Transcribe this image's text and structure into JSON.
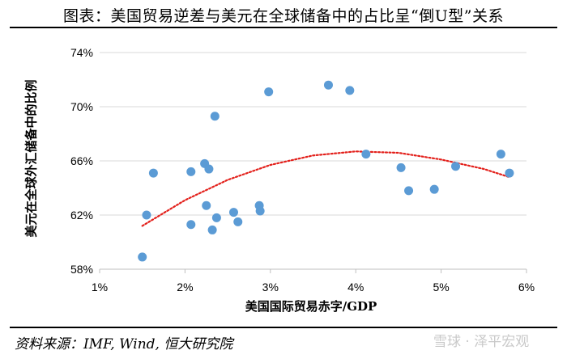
{
  "title": "图表：美国贸易逆差与美元在全球储备中的占比呈“倒U型”关系",
  "source": "资料来源：IMF, Wind, 恒大研究院",
  "watermark": "雪球 · 泽平宏观",
  "chart_data": {
    "type": "scatter",
    "title": "图表：美国贸易逆差与美元在全球储备中的占比呈“倒U型”关系",
    "xlabel": "美国国际贸易赤字/GDP",
    "ylabel": "美元在全球外汇储备中的比例",
    "xlim": [
      1,
      6
    ],
    "ylim": [
      58,
      74
    ],
    "x_ticks": [
      1,
      2,
      3,
      4,
      5,
      6
    ],
    "x_tick_labels": [
      "1%",
      "2%",
      "3%",
      "4%",
      "5%",
      "6%"
    ],
    "y_ticks": [
      58,
      62,
      66,
      70,
      74
    ],
    "y_tick_labels": [
      "58%",
      "62%",
      "66%",
      "70%",
      "74%"
    ],
    "point_color": "#5B9BD5",
    "trend_color": "#E3211C",
    "series": [
      {
        "name": "observations",
        "points": [
          [
            1.5,
            58.9
          ],
          [
            1.55,
            62.0
          ],
          [
            1.63,
            65.1
          ],
          [
            2.07,
            65.2
          ],
          [
            2.07,
            61.3
          ],
          [
            2.23,
            65.8
          ],
          [
            2.25,
            62.7
          ],
          [
            2.28,
            65.4
          ],
          [
            2.32,
            60.9
          ],
          [
            2.35,
            69.3
          ],
          [
            2.37,
            61.8
          ],
          [
            2.57,
            62.2
          ],
          [
            2.62,
            61.5
          ],
          [
            2.87,
            62.7
          ],
          [
            2.88,
            62.3
          ],
          [
            2.98,
            71.1
          ],
          [
            3.68,
            71.6
          ],
          [
            3.93,
            71.2
          ],
          [
            4.12,
            66.5
          ],
          [
            4.53,
            65.5
          ],
          [
            4.62,
            63.8
          ],
          [
            4.92,
            63.9
          ],
          [
            5.17,
            65.6
          ],
          [
            5.7,
            66.5
          ],
          [
            5.8,
            65.1
          ]
        ]
      }
    ],
    "trendline": {
      "type": "polynomial",
      "degree": 2,
      "points": [
        [
          1.5,
          61.2
        ],
        [
          2.0,
          63.1
        ],
        [
          2.5,
          64.6
        ],
        [
          3.0,
          65.7
        ],
        [
          3.5,
          66.4
        ],
        [
          4.0,
          66.7
        ],
        [
          4.5,
          66.6
        ],
        [
          5.0,
          66.1
        ],
        [
          5.5,
          65.4
        ],
        [
          5.8,
          64.8
        ]
      ]
    }
  }
}
